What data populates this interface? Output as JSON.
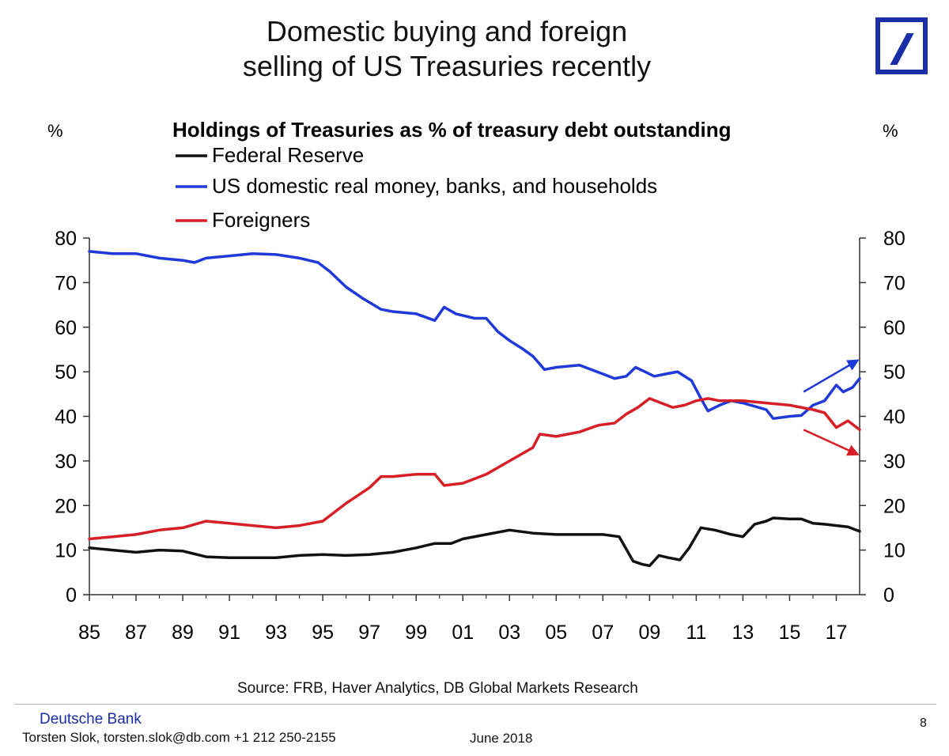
{
  "slide": {
    "title_line1": "Domestic buying and foreign",
    "title_line2": "selling of US Treasuries recently",
    "source": "Source: FRB, Haver Analytics,  DB Global Markets Research",
    "bank_name": "Deutsche Bank",
    "author": "Torsten Slok, torsten.slok@db.com +1 212 250-2155",
    "date": "June 2018",
    "page_number": "8"
  },
  "colors": {
    "fed": "#111111",
    "domestic": "#1f3ad8",
    "foreign": "#d61f26",
    "axis": "#333333"
  },
  "chart_data": {
    "type": "line",
    "title": "Holdings of Treasuries as % of treasury debt outstanding",
    "ylabel_left": "%",
    "ylabel_right": "%",
    "xlabel": "",
    "xlim": [
      1985,
      2018
    ],
    "ylim": [
      0,
      80
    ],
    "x_ticks": [
      "85",
      "87",
      "89",
      "91",
      "93",
      "95",
      "97",
      "99",
      "01",
      "03",
      "05",
      "07",
      "09",
      "11",
      "13",
      "15",
      "17"
    ],
    "y_ticks": [
      "0",
      "10",
      "20",
      "30",
      "40",
      "50",
      "60",
      "70",
      "80"
    ],
    "legend_position": "top-left",
    "series": [
      {
        "name": "Federal Reserve",
        "color_key": "fed",
        "x": [
          1985,
          1986,
          1987,
          1988,
          1989,
          1990,
          1991,
          1992,
          1993,
          1994,
          1995,
          1996,
          1997,
          1998,
          1999,
          1999.8,
          2000.5,
          2001,
          2002,
          2003,
          2004,
          2005,
          2006,
          2007,
          2007.7,
          2008.3,
          2008.7,
          2009,
          2009.4,
          2009.8,
          2010.3,
          2010.7,
          2011.2,
          2011.8,
          2012.5,
          2013,
          2013.5,
          2014,
          2014.3,
          2015,
          2015.5,
          2016,
          2016.5,
          2017,
          2017.5,
          2018
        ],
        "values": [
          10.5,
          10,
          9.5,
          10,
          9.8,
          8.5,
          8.3,
          8.3,
          8.3,
          8.8,
          9,
          8.8,
          9,
          9.5,
          10.5,
          11.5,
          11.5,
          12.5,
          13.5,
          14.5,
          13.8,
          13.5,
          13.5,
          13.5,
          13,
          7.5,
          6.8,
          6.5,
          8.8,
          8.3,
          7.8,
          10.5,
          15,
          14.5,
          13.5,
          13,
          15.8,
          16.5,
          17.2,
          17,
          17,
          16,
          15.8,
          15.5,
          15.2,
          14.2
        ]
      },
      {
        "name": "US domestic real money, banks, and households",
        "color_key": "domestic",
        "x": [
          1985,
          1986,
          1987,
          1988,
          1989,
          1989.5,
          1990,
          1991,
          1992,
          1993,
          1994,
          1994.8,
          1995.3,
          1996,
          1996.7,
          1997.5,
          1998,
          1999,
          1999.8,
          2000.2,
          2000.7,
          2001.5,
          2002,
          2002.5,
          2003,
          2003.6,
          2004,
          2004.5,
          2005,
          2006,
          2007,
          2007.5,
          2008,
          2008.4,
          2008.8,
          2009.2,
          2009.7,
          2010.2,
          2010.8,
          2011.2,
          2011.5,
          2012,
          2012.5,
          2013,
          2014,
          2014.3,
          2015,
          2015.5,
          2016,
          2016.5,
          2017,
          2017.3,
          2017.7,
          2018
        ],
        "values": [
          77,
          76.5,
          76.5,
          75.5,
          75,
          74.5,
          75.5,
          76,
          76.5,
          76.3,
          75.5,
          74.5,
          72.5,
          69,
          66.5,
          64,
          63.5,
          63,
          61.5,
          64.5,
          63,
          62,
          62,
          59,
          57,
          55,
          53.5,
          50.5,
          51,
          51.5,
          49.5,
          48.5,
          49,
          51,
          50,
          49,
          49.5,
          50,
          48,
          44,
          41.2,
          42.5,
          43.5,
          43,
          41.5,
          39.5,
          40,
          40.2,
          42.5,
          43.5,
          47,
          45.5,
          46.5,
          48.5
        ]
      },
      {
        "name": "Foreigners",
        "color_key": "foreign",
        "x": [
          1985,
          1986,
          1987,
          1988,
          1989,
          1990,
          1991,
          1992,
          1993,
          1994,
          1995,
          1996,
          1997,
          1997.5,
          1998,
          1999,
          1999.8,
          2000.2,
          2001,
          2002,
          2003,
          2004,
          2004.3,
          2005,
          2006,
          2006.8,
          2007.5,
          2008,
          2008.5,
          2009,
          2009.5,
          2010,
          2010.5,
          2011,
          2011.5,
          2012,
          2013,
          2014,
          2015,
          2016,
          2016.5,
          2017,
          2017.5,
          2018
        ],
        "values": [
          12.5,
          13,
          13.5,
          14.5,
          15,
          16.5,
          16,
          15.5,
          15,
          15.5,
          16.5,
          20.5,
          24,
          26.5,
          26.5,
          27,
          27,
          24.5,
          25,
          27,
          30,
          33,
          36,
          35.5,
          36.5,
          38,
          38.5,
          40.5,
          42,
          44,
          43,
          42,
          42.5,
          43.5,
          44,
          43.5,
          43.5,
          43,
          42.5,
          41.5,
          40.8,
          37.5,
          39,
          37
        ]
      }
    ],
    "annotations": [
      {
        "type": "arrow",
        "color_key": "domestic",
        "from": [
          2015.6,
          45.5
        ],
        "to": [
          2017.9,
          52.5
        ],
        "meaning": "rising domestic holdings"
      },
      {
        "type": "arrow",
        "color_key": "foreign",
        "from": [
          2015.6,
          37
        ],
        "to": [
          2017.9,
          31.5
        ],
        "meaning": "falling foreign holdings"
      }
    ]
  }
}
